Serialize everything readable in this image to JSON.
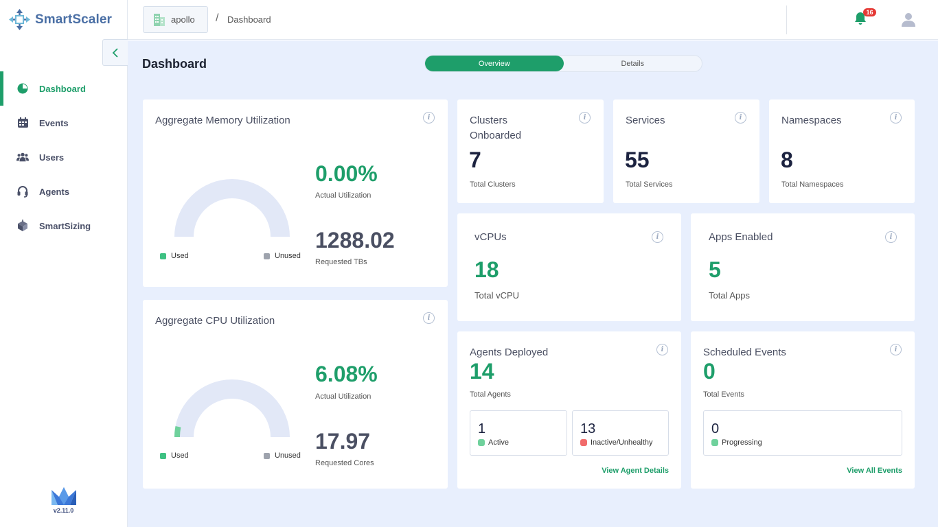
{
  "app": {
    "name": "SmartScaler",
    "version": "v2.11.0"
  },
  "header": {
    "cluster": "apollo",
    "separator": "/",
    "page": "Dashboard",
    "notification_count": "16"
  },
  "sidebar": {
    "items": [
      {
        "label": "Dashboard",
        "icon": "pie-chart-icon",
        "active": true
      },
      {
        "label": "Events",
        "icon": "calendar-icon"
      },
      {
        "label": "Users",
        "icon": "users-icon"
      },
      {
        "label": "Agents",
        "icon": "headset-icon"
      },
      {
        "label": "SmartSizing",
        "icon": "cube-icon"
      }
    ]
  },
  "main": {
    "title": "Dashboard",
    "tabs": [
      {
        "label": "Overview",
        "active": true
      },
      {
        "label": "Details"
      }
    ]
  },
  "memory": {
    "title": "Aggregate Memory Utilization",
    "utilization": "0.00%",
    "utilization_label": "Actual Utilization",
    "requested": "1288.02",
    "requested_label": "Requested TBs",
    "used_label": "Used",
    "unused_label": "Unused",
    "used_fraction": 0.0
  },
  "cpu": {
    "title": "Aggregate CPU Utilization",
    "utilization": "6.08%",
    "utilization_label": "Actual Utilization",
    "requested": "17.97",
    "requested_label": "Requested Cores",
    "used_label": "Used",
    "unused_label": "Unused",
    "used_fraction": 0.0608
  },
  "clusters": {
    "title": "Clusters Onboarded",
    "value": "7",
    "label": "Total Clusters"
  },
  "services": {
    "title": "Services",
    "value": "55",
    "label": "Total Services"
  },
  "namespaces": {
    "title": "Namespaces",
    "value": "8",
    "label": "Total Namespaces"
  },
  "vcpus": {
    "title": "vCPUs",
    "value": "18",
    "label": "Total vCPU"
  },
  "apps": {
    "title": "Apps Enabled",
    "value": "5",
    "label": "Total Apps"
  },
  "agents": {
    "title": "Agents Deployed",
    "value": "14",
    "label": "Total Agents",
    "active_count": "1",
    "active_label": "Active",
    "inactive_count": "13",
    "inactive_label": "Inactive/Unhealthy",
    "link": "View Agent Details"
  },
  "events": {
    "title": "Scheduled Events",
    "value": "0",
    "label": "Total Events",
    "progressing_count": "0",
    "progressing_label": "Progressing",
    "link": "View All Events"
  },
  "colors": {
    "accent": "#1e9e6a",
    "background": "#e8effd",
    "gauge_track": "#e2e8f7",
    "inactive": "#f16b6b"
  }
}
